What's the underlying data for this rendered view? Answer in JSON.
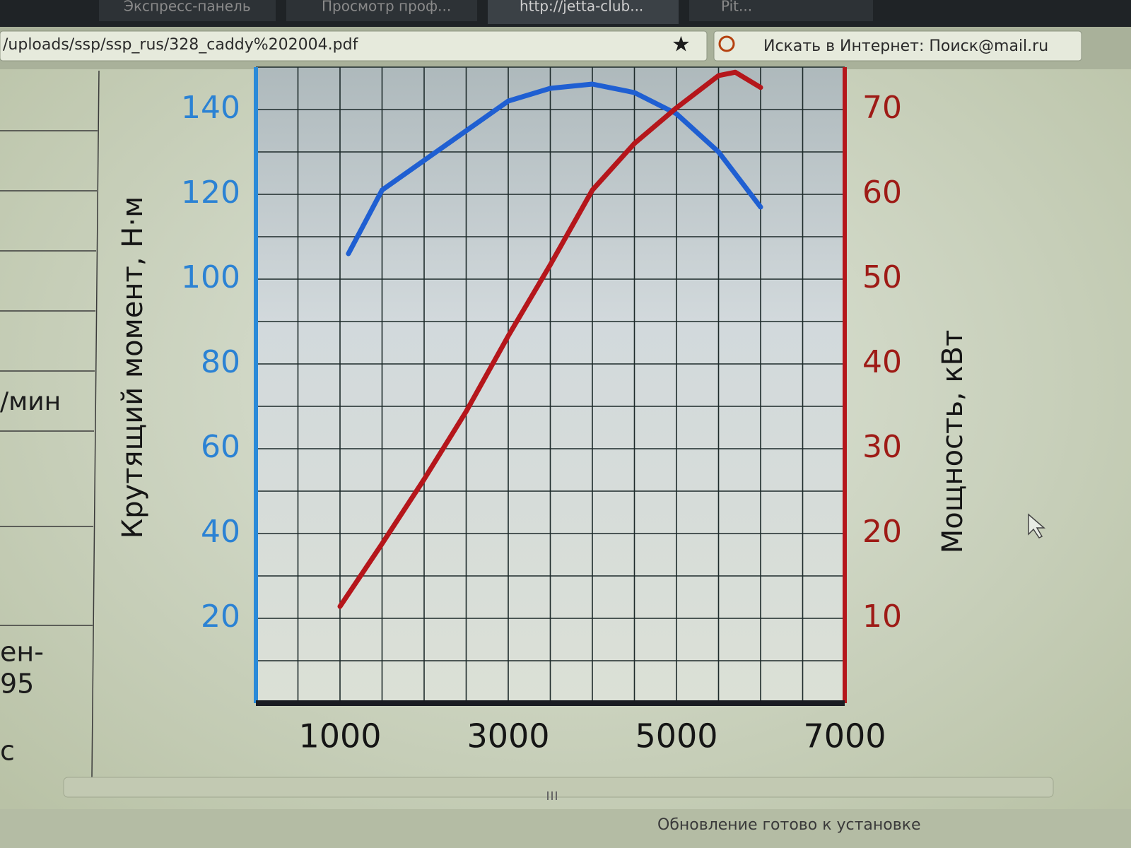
{
  "browser": {
    "tabs": [
      "Экспресс-панель",
      "Просмотр проф...",
      "http://jetta-club...",
      "Pit..."
    ],
    "address": "/uploads/ssp/ssp_rus/328_caddy%202004.pdf",
    "search": "Искать в Интернет: Поиск@mail.ru",
    "status": "Обновление готово к установке"
  },
  "left_panel": [
    "/мин",
    "ен-",
    "95",
    "с"
  ],
  "chart_data": {
    "type": "line",
    "ylabel": "Крутящий момент, Н·м",
    "y2label": "Мощность, кВт",
    "xlim": [
      0,
      7000
    ],
    "xticks": [
      1000,
      3000,
      5000,
      7000
    ],
    "ylim": [
      0,
      150
    ],
    "yticks": [
      20,
      40,
      60,
      80,
      100,
      120,
      140
    ],
    "y2lim": [
      0,
      75
    ],
    "y2ticks": [
      10,
      20,
      30,
      40,
      50,
      60,
      70
    ],
    "xgrid": [
      500,
      1000,
      1500,
      2000,
      2500,
      3000,
      3500,
      4000,
      4500,
      5000,
      5500,
      6000,
      6500
    ],
    "ygrid": [
      10,
      20,
      30,
      40,
      50,
      60,
      70,
      80,
      90,
      100,
      110,
      120,
      130,
      140,
      150
    ],
    "grid": true,
    "series": [
      {
        "color": "#1f5fd2",
        "x": [
          1100,
          1500,
          2000,
          2500,
          3000,
          3500,
          4000,
          4500,
          5000,
          5500,
          6000
        ],
        "values": [
          106,
          121,
          128,
          135,
          142,
          145,
          146,
          144,
          139,
          130,
          117
        ]
      },
      {
        "color": "#b5161b",
        "axis": "y2",
        "x": [
          1000,
          1500,
          2000,
          2500,
          3000,
          3500,
          4000,
          4500,
          5000,
          5500,
          5700,
          6000
        ],
        "values": [
          11.4,
          18.8,
          26.4,
          34.4,
          43.3,
          51.7,
          60.5,
          66,
          70.2,
          74,
          74.4,
          72.6
        ]
      }
    ]
  }
}
